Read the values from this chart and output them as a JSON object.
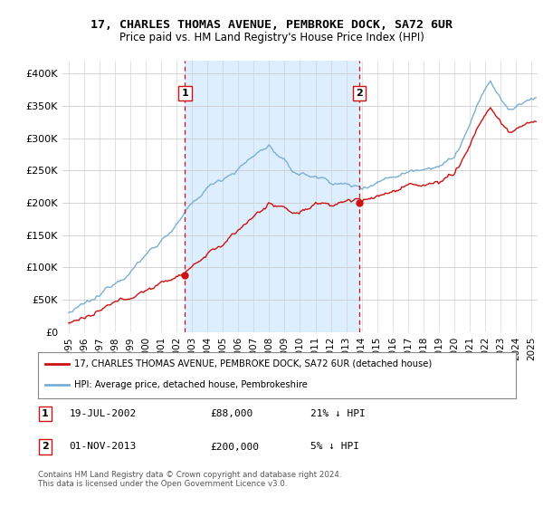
{
  "title1": "17, CHARLES THOMAS AVENUE, PEMBROKE DOCK, SA72 6UR",
  "title2": "Price paid vs. HM Land Registry's House Price Index (HPI)",
  "ylabel_ticks": [
    "£0",
    "£50K",
    "£100K",
    "£150K",
    "£200K",
    "£250K",
    "£300K",
    "£350K",
    "£400K"
  ],
  "ytick_values": [
    0,
    50000,
    100000,
    150000,
    200000,
    250000,
    300000,
    350000,
    400000
  ],
  "ylim": [
    0,
    420000
  ],
  "xlim_start": 1994.6,
  "xlim_end": 2025.4,
  "xtick_years": [
    1995,
    1996,
    1997,
    1998,
    1999,
    2000,
    2001,
    2002,
    2003,
    2004,
    2005,
    2006,
    2007,
    2008,
    2009,
    2010,
    2011,
    2012,
    2013,
    2014,
    2015,
    2016,
    2017,
    2018,
    2019,
    2020,
    2021,
    2022,
    2023,
    2024,
    2025
  ],
  "hpi_color": "#7bafd4",
  "price_color": "#cc1111",
  "shade_color": "#ddeeff",
  "marker1_date": 2002.54,
  "marker1_price": 88000,
  "marker2_date": 2013.83,
  "marker2_price": 200000,
  "legend_line1": "17, CHARLES THOMAS AVENUE, PEMBROKE DOCK, SA72 6UR (detached house)",
  "legend_line2": "HPI: Average price, detached house, Pembrokeshire",
  "annotation1_num": "1",
  "annotation2_num": "2",
  "annot1_date": "19-JUL-2002",
  "annot1_price": "£88,000",
  "annot1_hpi": "21% ↓ HPI",
  "annot2_date": "01-NOV-2013",
  "annot2_price": "£200,000",
  "annot2_hpi": "5% ↓ HPI",
  "footnote": "Contains HM Land Registry data © Crown copyright and database right 2024.\nThis data is licensed under the Open Government Licence v3.0.",
  "background_color": "#ffffff",
  "grid_color": "#cccccc"
}
